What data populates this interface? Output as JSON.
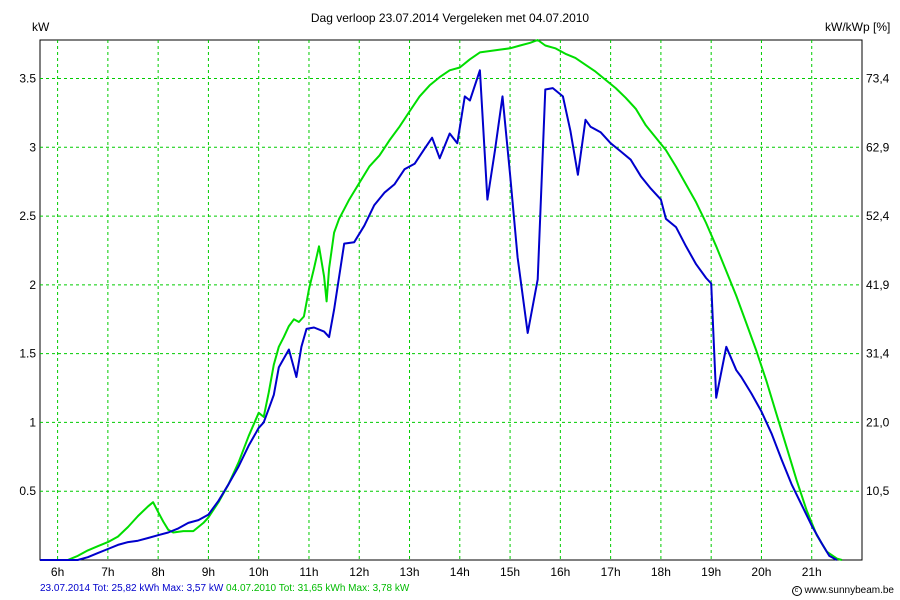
{
  "header": {
    "title": "Dag  verloop 23.07.2014   Vergeleken met 04.07.2010",
    "left_unit": "kW",
    "right_unit": "kW/kWp [%]"
  },
  "footer": {
    "series1_text": "23.07.2014 Tot: 25,82 kWh Max: 3,57 kW",
    "series2_text": "04.07.2010 Tot: 31,65 kWh Max: 3,78 kW",
    "brand_text": "www.sunnybeam.be",
    "brand_icon": "copyright-icon"
  },
  "chart_data": {
    "type": "line",
    "title": "Dag  verloop 23.07.2014   Vergeleken met 04.07.2010",
    "ylabel": "kW",
    "y2label": "kW/kWp [%]",
    "xlim": [
      5.65,
      22.0
    ],
    "ylim": [
      0,
      3.78
    ],
    "grid": true,
    "x_ticks": [
      {
        "v": 6,
        "label": "6h"
      },
      {
        "v": 7,
        "label": "7h"
      },
      {
        "v": 8,
        "label": "8h"
      },
      {
        "v": 9,
        "label": "9h"
      },
      {
        "v": 10,
        "label": "10h"
      },
      {
        "v": 11,
        "label": "11h"
      },
      {
        "v": 12,
        "label": "12h"
      },
      {
        "v": 13,
        "label": "13h"
      },
      {
        "v": 14,
        "label": "14h"
      },
      {
        "v": 15,
        "label": "15h"
      },
      {
        "v": 16,
        "label": "16h"
      },
      {
        "v": 17,
        "label": "17h"
      },
      {
        "v": 18,
        "label": "18h"
      },
      {
        "v": 19,
        "label": "19h"
      },
      {
        "v": 20,
        "label": "20h"
      },
      {
        "v": 21,
        "label": "21h"
      }
    ],
    "y_ticks": [
      {
        "v": 0.5,
        "label": "0.5"
      },
      {
        "v": 1,
        "label": "1"
      },
      {
        "v": 1.5,
        "label": "1.5"
      },
      {
        "v": 2,
        "label": "2"
      },
      {
        "v": 2.5,
        "label": "2.5"
      },
      {
        "v": 3,
        "label": "3"
      },
      {
        "v": 3.5,
        "label": "3.5"
      }
    ],
    "y2_ticks": [
      {
        "v": 0.5,
        "label": "10,5"
      },
      {
        "v": 1,
        "label": "21,0"
      },
      {
        "v": 1.5,
        "label": "31,4"
      },
      {
        "v": 2,
        "label": "41,9"
      },
      {
        "v": 2.5,
        "label": "52,4"
      },
      {
        "v": 3,
        "label": "62,9"
      },
      {
        "v": 3.5,
        "label": "73,4"
      }
    ],
    "series": [
      {
        "color": "#00dd00",
        "points": [
          [
            5.65,
            0
          ],
          [
            6.2,
            0
          ],
          [
            6.4,
            0.03
          ],
          [
            6.6,
            0.07
          ],
          [
            6.8,
            0.1
          ],
          [
            7.0,
            0.13
          ],
          [
            7.2,
            0.17
          ],
          [
            7.4,
            0.24
          ],
          [
            7.6,
            0.32
          ],
          [
            7.8,
            0.39
          ],
          [
            7.9,
            0.42
          ],
          [
            8.0,
            0.35
          ],
          [
            8.1,
            0.28
          ],
          [
            8.2,
            0.22
          ],
          [
            8.3,
            0.2
          ],
          [
            8.5,
            0.21
          ],
          [
            8.7,
            0.21
          ],
          [
            8.9,
            0.27
          ],
          [
            9.0,
            0.31
          ],
          [
            9.2,
            0.42
          ],
          [
            9.4,
            0.55
          ],
          [
            9.6,
            0.71
          ],
          [
            9.8,
            0.9
          ],
          [
            10.0,
            1.07
          ],
          [
            10.1,
            1.04
          ],
          [
            10.2,
            1.22
          ],
          [
            10.3,
            1.42
          ],
          [
            10.4,
            1.55
          ],
          [
            10.5,
            1.62
          ],
          [
            10.6,
            1.7
          ],
          [
            10.7,
            1.75
          ],
          [
            10.8,
            1.73
          ],
          [
            10.9,
            1.77
          ],
          [
            11.0,
            1.97
          ],
          [
            11.1,
            2.12
          ],
          [
            11.2,
            2.28
          ],
          [
            11.3,
            2.06
          ],
          [
            11.35,
            1.88
          ],
          [
            11.4,
            2.12
          ],
          [
            11.5,
            2.38
          ],
          [
            11.6,
            2.48
          ],
          [
            11.7,
            2.55
          ],
          [
            11.8,
            2.62
          ],
          [
            12.0,
            2.74
          ],
          [
            12.2,
            2.86
          ],
          [
            12.4,
            2.94
          ],
          [
            12.6,
            3.05
          ],
          [
            12.8,
            3.15
          ],
          [
            13.0,
            3.26
          ],
          [
            13.2,
            3.37
          ],
          [
            13.4,
            3.45
          ],
          [
            13.6,
            3.51
          ],
          [
            13.8,
            3.56
          ],
          [
            14.0,
            3.58
          ],
          [
            14.2,
            3.64
          ],
          [
            14.4,
            3.69
          ],
          [
            14.6,
            3.7
          ],
          [
            14.8,
            3.71
          ],
          [
            15.0,
            3.72
          ],
          [
            15.2,
            3.74
          ],
          [
            15.4,
            3.76
          ],
          [
            15.55,
            3.78
          ],
          [
            15.7,
            3.74
          ],
          [
            15.9,
            3.72
          ],
          [
            16.1,
            3.68
          ],
          [
            16.3,
            3.65
          ],
          [
            16.5,
            3.6
          ],
          [
            16.7,
            3.55
          ],
          [
            16.9,
            3.49
          ],
          [
            17.1,
            3.43
          ],
          [
            17.3,
            3.36
          ],
          [
            17.5,
            3.28
          ],
          [
            17.7,
            3.16
          ],
          [
            17.9,
            3.07
          ],
          [
            18.1,
            2.98
          ],
          [
            18.3,
            2.86
          ],
          [
            18.5,
            2.73
          ],
          [
            18.7,
            2.6
          ],
          [
            18.9,
            2.45
          ],
          [
            19.1,
            2.28
          ],
          [
            19.3,
            2.1
          ],
          [
            19.5,
            1.92
          ],
          [
            19.7,
            1.72
          ],
          [
            19.9,
            1.52
          ],
          [
            20.1,
            1.3
          ],
          [
            20.3,
            1.06
          ],
          [
            20.5,
            0.82
          ],
          [
            20.7,
            0.58
          ],
          [
            20.9,
            0.36
          ],
          [
            21.1,
            0.18
          ],
          [
            21.3,
            0.06
          ],
          [
            21.5,
            0.01
          ],
          [
            21.6,
            0
          ]
        ]
      },
      {
        "color": "#0000cc",
        "points": [
          [
            5.65,
            0
          ],
          [
            6.4,
            0
          ],
          [
            6.6,
            0.02
          ],
          [
            6.8,
            0.05
          ],
          [
            7.0,
            0.08
          ],
          [
            7.2,
            0.11
          ],
          [
            7.4,
            0.13
          ],
          [
            7.6,
            0.14
          ],
          [
            7.8,
            0.16
          ],
          [
            8.0,
            0.18
          ],
          [
            8.2,
            0.2
          ],
          [
            8.4,
            0.23
          ],
          [
            8.6,
            0.27
          ],
          [
            8.8,
            0.29
          ],
          [
            9.0,
            0.33
          ],
          [
            9.2,
            0.43
          ],
          [
            9.4,
            0.55
          ],
          [
            9.6,
            0.68
          ],
          [
            9.8,
            0.83
          ],
          [
            10.0,
            0.96
          ],
          [
            10.1,
            1.0
          ],
          [
            10.2,
            1.1
          ],
          [
            10.3,
            1.2
          ],
          [
            10.4,
            1.4
          ],
          [
            10.6,
            1.53
          ],
          [
            10.75,
            1.33
          ],
          [
            10.85,
            1.55
          ],
          [
            10.95,
            1.68
          ],
          [
            11.1,
            1.69
          ],
          [
            11.3,
            1.66
          ],
          [
            11.4,
            1.62
          ],
          [
            11.5,
            1.82
          ],
          [
            11.7,
            2.3
          ],
          [
            11.9,
            2.31
          ],
          [
            12.1,
            2.43
          ],
          [
            12.3,
            2.58
          ],
          [
            12.5,
            2.67
          ],
          [
            12.7,
            2.73
          ],
          [
            12.9,
            2.84
          ],
          [
            13.1,
            2.88
          ],
          [
            13.3,
            2.99
          ],
          [
            13.45,
            3.07
          ],
          [
            13.6,
            2.92
          ],
          [
            13.8,
            3.1
          ],
          [
            13.95,
            3.03
          ],
          [
            14.1,
            3.37
          ],
          [
            14.2,
            3.34
          ],
          [
            14.4,
            3.56
          ],
          [
            14.55,
            2.62
          ],
          [
            14.7,
            2.98
          ],
          [
            14.85,
            3.37
          ],
          [
            15.0,
            2.8
          ],
          [
            15.15,
            2.2
          ],
          [
            15.35,
            1.65
          ],
          [
            15.55,
            2.04
          ],
          [
            15.7,
            3.42
          ],
          [
            15.85,
            3.43
          ],
          [
            16.05,
            3.37
          ],
          [
            16.2,
            3.12
          ],
          [
            16.35,
            2.8
          ],
          [
            16.5,
            3.2
          ],
          [
            16.6,
            3.15
          ],
          [
            16.8,
            3.11
          ],
          [
            17.0,
            3.03
          ],
          [
            17.2,
            2.97
          ],
          [
            17.4,
            2.91
          ],
          [
            17.6,
            2.79
          ],
          [
            17.8,
            2.7
          ],
          [
            18.0,
            2.62
          ],
          [
            18.1,
            2.48
          ],
          [
            18.3,
            2.42
          ],
          [
            18.5,
            2.28
          ],
          [
            18.7,
            2.15
          ],
          [
            18.9,
            2.05
          ],
          [
            19.0,
            2.01
          ],
          [
            19.1,
            1.18
          ],
          [
            19.3,
            1.55
          ],
          [
            19.5,
            1.38
          ],
          [
            19.6,
            1.33
          ],
          [
            19.8,
            1.21
          ],
          [
            20.0,
            1.08
          ],
          [
            20.2,
            0.92
          ],
          [
            20.4,
            0.73
          ],
          [
            20.6,
            0.55
          ],
          [
            20.8,
            0.4
          ],
          [
            21.0,
            0.25
          ],
          [
            21.2,
            0.12
          ],
          [
            21.35,
            0.03
          ],
          [
            21.5,
            0
          ]
        ]
      }
    ]
  }
}
